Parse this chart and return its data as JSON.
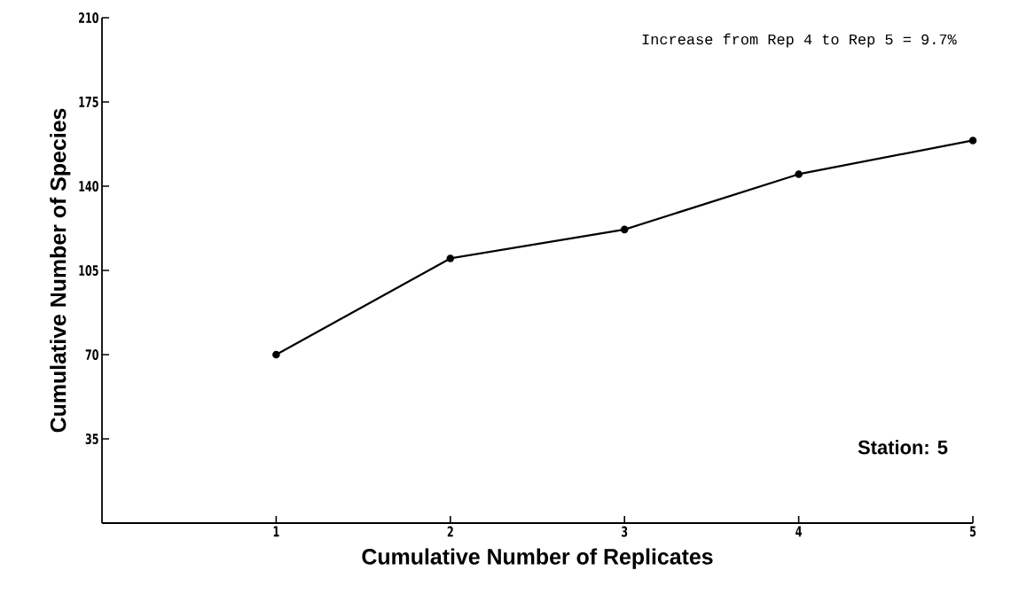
{
  "chart_data": {
    "type": "line",
    "xlabel": "Cumulative Number of Replicates",
    "ylabel": "Cumulative Number of Species",
    "x": [
      1,
      2,
      3,
      4,
      5
    ],
    "values": [
      70,
      110,
      122,
      145,
      159
    ],
    "color": "#000000",
    "marker": "circle",
    "line_style": "solid",
    "xlim": [
      0,
      5
    ],
    "ylim": [
      0,
      210
    ],
    "xticks": [
      1,
      2,
      3,
      4,
      5
    ],
    "yticks": [
      35,
      70,
      105,
      140,
      175,
      210
    ],
    "annotations": [
      "Increase from Rep 4 to Rep 5 = 9.7%",
      "Station: 5"
    ]
  }
}
